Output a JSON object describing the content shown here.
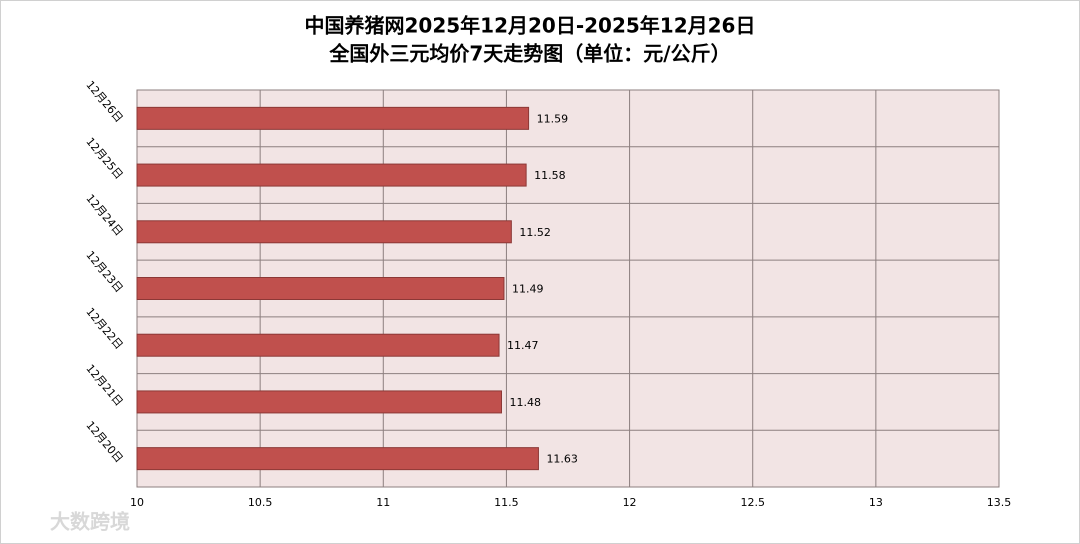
{
  "chart_data": {
    "type": "bar",
    "orientation": "horizontal",
    "title": "中国养猪网2025年12月20日-2025年12月26日",
    "subtitle": "全国外三元均价7天走势图（单位：元/公斤）",
    "categories": [
      "12月26日",
      "12月25日",
      "12月24日",
      "12月23日",
      "12月22日",
      "12月21日",
      "12月20日"
    ],
    "values": [
      11.59,
      11.58,
      11.52,
      11.49,
      11.47,
      11.48,
      11.63
    ],
    "color": "#c0504d",
    "xlim": [
      10,
      13.5
    ],
    "xticks": [
      10,
      10.5,
      11,
      11.5,
      12,
      12.5,
      13,
      13.5
    ],
    "grid": true,
    "watermark": "大数跨境"
  }
}
